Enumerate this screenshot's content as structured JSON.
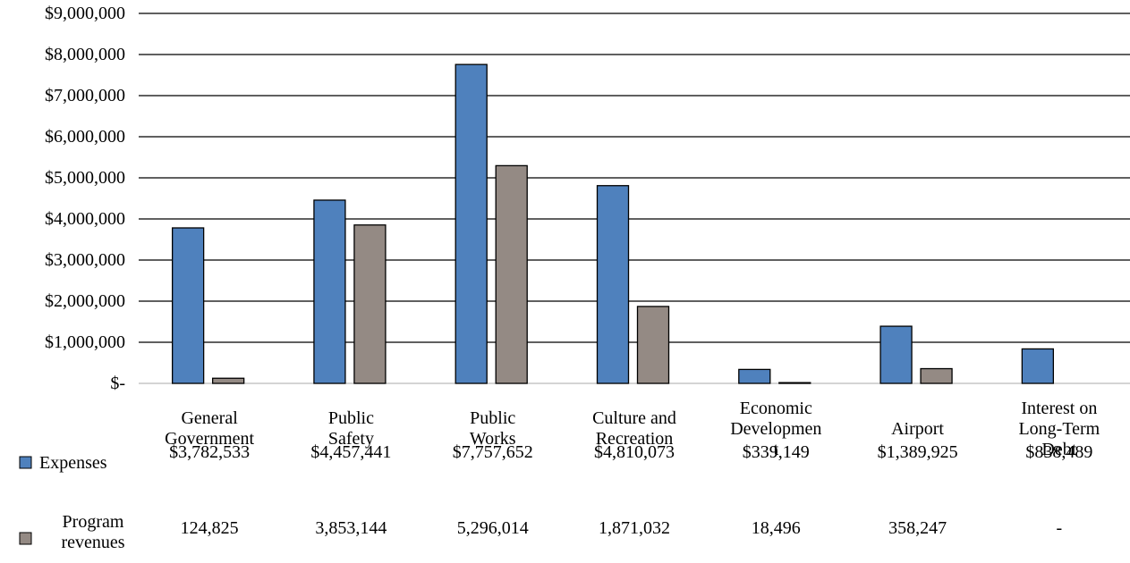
{
  "chart_data": {
    "type": "bar",
    "categories": [
      "General Government",
      "Public Safety",
      "Public Works",
      "Culture and Recreation",
      "Economic Development",
      "Airport",
      "Interest on Long-Term Debt"
    ],
    "series": [
      {
        "name": "Expenses",
        "color": "#4f81bd",
        "values": [
          3782533,
          4457441,
          7757652,
          4810073,
          339149,
          1389925,
          838489
        ],
        "value_labels": [
          "$3,782,533",
          "$4,457,441",
          "$7,757,652",
          "$4,810,073",
          "$339,149",
          "$1,389,925",
          "$838,489"
        ]
      },
      {
        "name": "Program revenues",
        "color": "#948a84",
        "values": [
          124825,
          3853144,
          5296014,
          1871032,
          18496,
          358247,
          0
        ],
        "value_labels": [
          "124,825",
          "3,853,144",
          "5,296,014",
          "1,871,032",
          "18,496",
          "358,247",
          "-"
        ]
      }
    ],
    "ylim": [
      0,
      9000000
    ],
    "yticks": [
      {
        "value": 0,
        "label": "$-"
      },
      {
        "value": 1000000,
        "label": "$1,000,000"
      },
      {
        "value": 2000000,
        "label": "$2,000,000"
      },
      {
        "value": 3000000,
        "label": "$3,000,000"
      },
      {
        "value": 4000000,
        "label": "$4,000,000"
      },
      {
        "value": 5000000,
        "label": "$5,000,000"
      },
      {
        "value": 6000000,
        "label": "$6,000,000"
      },
      {
        "value": 7000000,
        "label": "$7,000,000"
      },
      {
        "value": 8000000,
        "label": "$8,000,000"
      },
      {
        "value": 9000000,
        "label": "$9,000,000"
      }
    ],
    "grid": true
  }
}
